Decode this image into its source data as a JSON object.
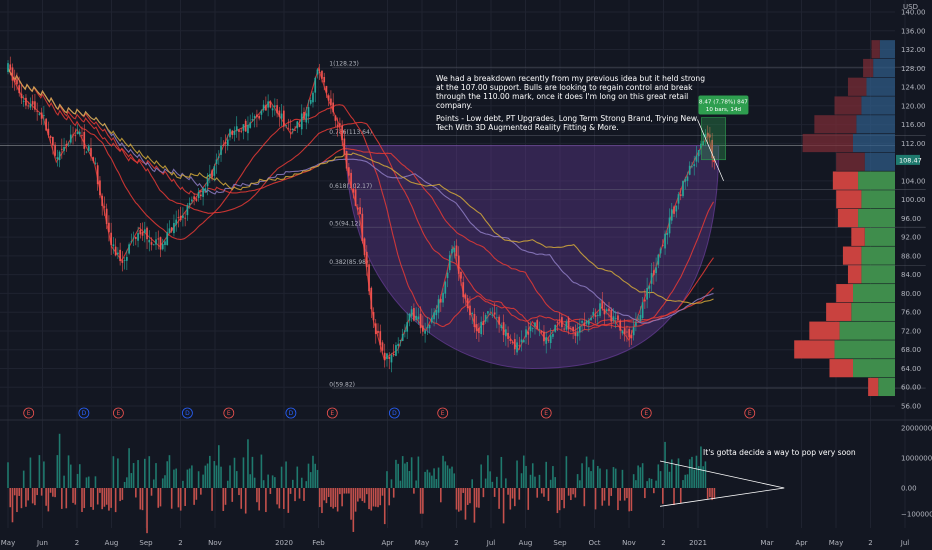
{
  "chart_data": {
    "type": "candlestick",
    "currency_label": "USD",
    "price_axis": {
      "min": 56,
      "max": 140,
      "ticks": [
        {
          "value": 140,
          "label": "140.00"
        },
        {
          "value": 136,
          "label": "136.00"
        },
        {
          "value": 132,
          "label": "132.00"
        },
        {
          "value": 128,
          "label": "128.00"
        },
        {
          "value": 124,
          "label": "124.00"
        },
        {
          "value": 120,
          "label": "120.00"
        },
        {
          "value": 116,
          "label": "116.00"
        },
        {
          "value": 112,
          "label": "112.00"
        },
        {
          "value": 104,
          "label": "104.00"
        },
        {
          "value": 100,
          "label": "100.00"
        },
        {
          "value": 96,
          "label": "96.00"
        },
        {
          "value": 92,
          "label": "92.00"
        },
        {
          "value": 88,
          "label": "88.00"
        },
        {
          "value": 84,
          "label": "84.00"
        },
        {
          "value": 80,
          "label": "80.00"
        },
        {
          "value": 76,
          "label": "76.00"
        },
        {
          "value": 72,
          "label": "72.00"
        },
        {
          "value": 68,
          "label": "68.00"
        },
        {
          "value": 64,
          "label": "64.00"
        },
        {
          "value": 60,
          "label": "60.00"
        },
        {
          "value": 56,
          "label": "56.00"
        }
      ]
    },
    "last_price": {
      "value": 108.47,
      "label": "108.47"
    },
    "volume_axis": {
      "min": -1300000,
      "max": 2000000,
      "ticks": [
        {
          "value": 2000000,
          "label": "2000000.00"
        },
        {
          "value": 1000000,
          "label": "1000000.00"
        },
        {
          "value": 0,
          "label": "0.00"
        },
        {
          "value": -1000000,
          "label": "−1000000.00"
        }
      ]
    },
    "time_axis": [
      {
        "label": "May",
        "month_index": 0
      },
      {
        "label": "Jun",
        "month_index": 1
      },
      {
        "label": "2",
        "month_index": 2
      },
      {
        "label": "Aug",
        "month_index": 3
      },
      {
        "label": "Sep",
        "month_index": 4
      },
      {
        "label": "2",
        "month_index": 5
      },
      {
        "label": "Nov",
        "month_index": 6
      },
      {
        "label": "2020",
        "month_index": 8
      },
      {
        "label": "Feb",
        "month_index": 9
      },
      {
        "label": "Apr",
        "month_index": 11
      },
      {
        "label": "May",
        "month_index": 12
      },
      {
        "label": "2",
        "month_index": 13
      },
      {
        "label": "Jul",
        "month_index": 14
      },
      {
        "label": "Aug",
        "month_index": 15
      },
      {
        "label": "Sep",
        "month_index": 16
      },
      {
        "label": "Oct",
        "month_index": 17
      },
      {
        "label": "Nov",
        "month_index": 18
      },
      {
        "label": "2",
        "month_index": 19
      },
      {
        "label": "2021",
        "month_index": 20
      },
      {
        "label": "Mar",
        "month_index": 22
      },
      {
        "label": "Apr",
        "month_index": 23
      },
      {
        "label": "May",
        "month_index": 24
      },
      {
        "label": "2",
        "month_index": 25
      },
      {
        "label": "Jul",
        "month_index": 26
      }
    ],
    "price_path": [
      [
        0,
        128
      ],
      [
        0.4,
        122
      ],
      [
        1.0,
        118
      ],
      [
        1.4,
        108
      ],
      [
        2.0,
        115
      ],
      [
        2.5,
        108
      ],
      [
        3.0,
        90
      ],
      [
        3.3,
        87
      ],
      [
        3.8,
        94
      ],
      [
        4.4,
        90
      ],
      [
        5.2,
        98
      ],
      [
        5.8,
        104
      ],
      [
        6.4,
        114
      ],
      [
        7.0,
        116
      ],
      [
        7.6,
        121
      ],
      [
        8.2,
        114
      ],
      [
        8.6,
        118
      ],
      [
        9.0,
        128
      ],
      [
        9.3,
        121
      ],
      [
        9.6,
        116
      ],
      [
        9.9,
        104
      ],
      [
        10.2,
        96
      ],
      [
        10.6,
        74
      ],
      [
        10.9,
        66
      ],
      [
        11.3,
        68
      ],
      [
        11.7,
        76
      ],
      [
        12.1,
        72
      ],
      [
        12.5,
        78
      ],
      [
        12.9,
        90
      ],
      [
        13.2,
        80
      ],
      [
        13.6,
        72
      ],
      [
        14.0,
        76
      ],
      [
        14.4,
        72
      ],
      [
        14.8,
        68
      ],
      [
        15.2,
        74
      ],
      [
        15.6,
        70
      ],
      [
        16.0,
        74
      ],
      [
        16.4,
        72
      ],
      [
        16.8,
        74
      ],
      [
        17.2,
        77
      ],
      [
        17.6,
        74
      ],
      [
        18.0,
        70
      ],
      [
        18.4,
        78
      ],
      [
        18.8,
        86
      ],
      [
        19.2,
        96
      ],
      [
        19.6,
        104
      ],
      [
        20.0,
        110
      ],
      [
        20.3,
        114
      ],
      [
        20.5,
        106
      ]
    ],
    "ma_ribbon_offsets": [
      0,
      2,
      4,
      6,
      8,
      10
    ],
    "cup_zone": {
      "from": 9.8,
      "to": 20.6,
      "rim": 111.5,
      "bottom": 64
    },
    "fib_levels": [
      {
        "label": "1(128.23)",
        "value": 128.23
      },
      {
        "label": "0.786(113.64)",
        "value": 113.64
      },
      {
        "label": "0.618(102.17)",
        "value": 102.17
      },
      {
        "label": "0.5(94.12)",
        "value": 94.12
      },
      {
        "label": "0.382(85.98)",
        "value": 85.98
      },
      {
        "label": "0(59.82)",
        "value": 59.82
      }
    ],
    "fib_range": {
      "from": 9.4,
      "to": 26.6
    },
    "projection_badge": {
      "line1": "8.47 (7.78%) 847",
      "line2": "10 bars, 14d",
      "from": 20.1,
      "to": 20.8,
      "top": 117.5,
      "bottom": 108.5
    },
    "horizontal_line": 111.5,
    "volume_profile": [
      {
        "price": 132,
        "buy": 0.18,
        "sell": 0.1
      },
      {
        "price": 128,
        "buy": 0.26,
        "sell": 0.12
      },
      {
        "price": 124,
        "buy": 0.34,
        "sell": 0.22
      },
      {
        "price": 120,
        "buy": 0.4,
        "sell": 0.32
      },
      {
        "price": 116,
        "buy": 0.46,
        "sell": 0.5
      },
      {
        "price": 112,
        "buy": 0.5,
        "sell": 0.6
      },
      {
        "price": 108,
        "buy": 0.36,
        "sell": 0.34
      },
      {
        "price": 104,
        "buy": 0.44,
        "sell": 0.3
      },
      {
        "price": 100,
        "buy": 0.4,
        "sell": 0.3
      },
      {
        "price": 96,
        "buy": 0.44,
        "sell": 0.24
      },
      {
        "price": 92,
        "buy": 0.36,
        "sell": 0.16
      },
      {
        "price": 88,
        "buy": 0.4,
        "sell": 0.22
      },
      {
        "price": 84,
        "buy": 0.4,
        "sell": 0.16
      },
      {
        "price": 80,
        "buy": 0.5,
        "sell": 0.2
      },
      {
        "price": 76,
        "buy": 0.52,
        "sell": 0.3
      },
      {
        "price": 72,
        "buy": 0.66,
        "sell": 0.36
      },
      {
        "price": 68,
        "buy": 0.72,
        "sell": 0.48
      },
      {
        "price": 64,
        "buy": 0.5,
        "sell": 0.28
      },
      {
        "price": 60,
        "buy": 0.2,
        "sell": 0.12
      }
    ],
    "events": [
      {
        "label": "E",
        "month_index": 0.6,
        "kind": "earnings"
      },
      {
        "label": "D",
        "month_index": 2.2,
        "kind": "dividend"
      },
      {
        "label": "E",
        "month_index": 3.2,
        "kind": "earnings"
      },
      {
        "label": "D",
        "month_index": 5.2,
        "kind": "dividend"
      },
      {
        "label": "E",
        "month_index": 6.4,
        "kind": "earnings"
      },
      {
        "label": "D",
        "month_index": 8.2,
        "kind": "dividend"
      },
      {
        "label": "E",
        "month_index": 9.4,
        "kind": "earnings"
      },
      {
        "label": "D",
        "month_index": 11.2,
        "kind": "dividend"
      },
      {
        "label": "E",
        "month_index": 12.6,
        "kind": "earnings"
      },
      {
        "label": "E",
        "month_index": 15.6,
        "kind": "earnings"
      },
      {
        "label": "E",
        "month_index": 18.5,
        "kind": "earnings"
      },
      {
        "label": "E",
        "month_index": 21.5,
        "kind": "earnings"
      }
    ],
    "annotations": {
      "main_note": [
        "We had a breakdown recently from my previous idea but it held strong",
        "at the 107.00 support. Bulls are looking to regain control and break",
        "through the 110.00 mark, once it does I'm long on this great retail",
        "company.",
        "",
        "Points - Low debt, PT Upgrades, Long Term Strong Brand, Trying New",
        "Tech With 3D Augmented Reality Fitting & More."
      ],
      "volume_note": "It's gotta decide a way to pop very soon"
    },
    "volume_triangle": {
      "start": 18.9,
      "apex": 22.5,
      "top": 900000,
      "bottom": -700000
    },
    "colors": {
      "background": "#131722",
      "up": "#26a69a",
      "down": "#ef5350",
      "volume_up": "#1f7a6e",
      "volume_down": "#c4504c",
      "ribbon": "#e53935",
      "ribbon_slow": "#d4a93a",
      "ribbon_violet": "#8e7cc3",
      "cup_fill": "#6a3d9a",
      "badge": "#2e9e4f",
      "profile_buy_upper": "#2f5b85",
      "profile_sell_upper": "#7a2c35",
      "profile_buy_lower": "#3f8d4c",
      "profile_sell_lower": "#c9423f",
      "grid": "#1f2330",
      "price_tag": "#1f7a6e"
    }
  }
}
